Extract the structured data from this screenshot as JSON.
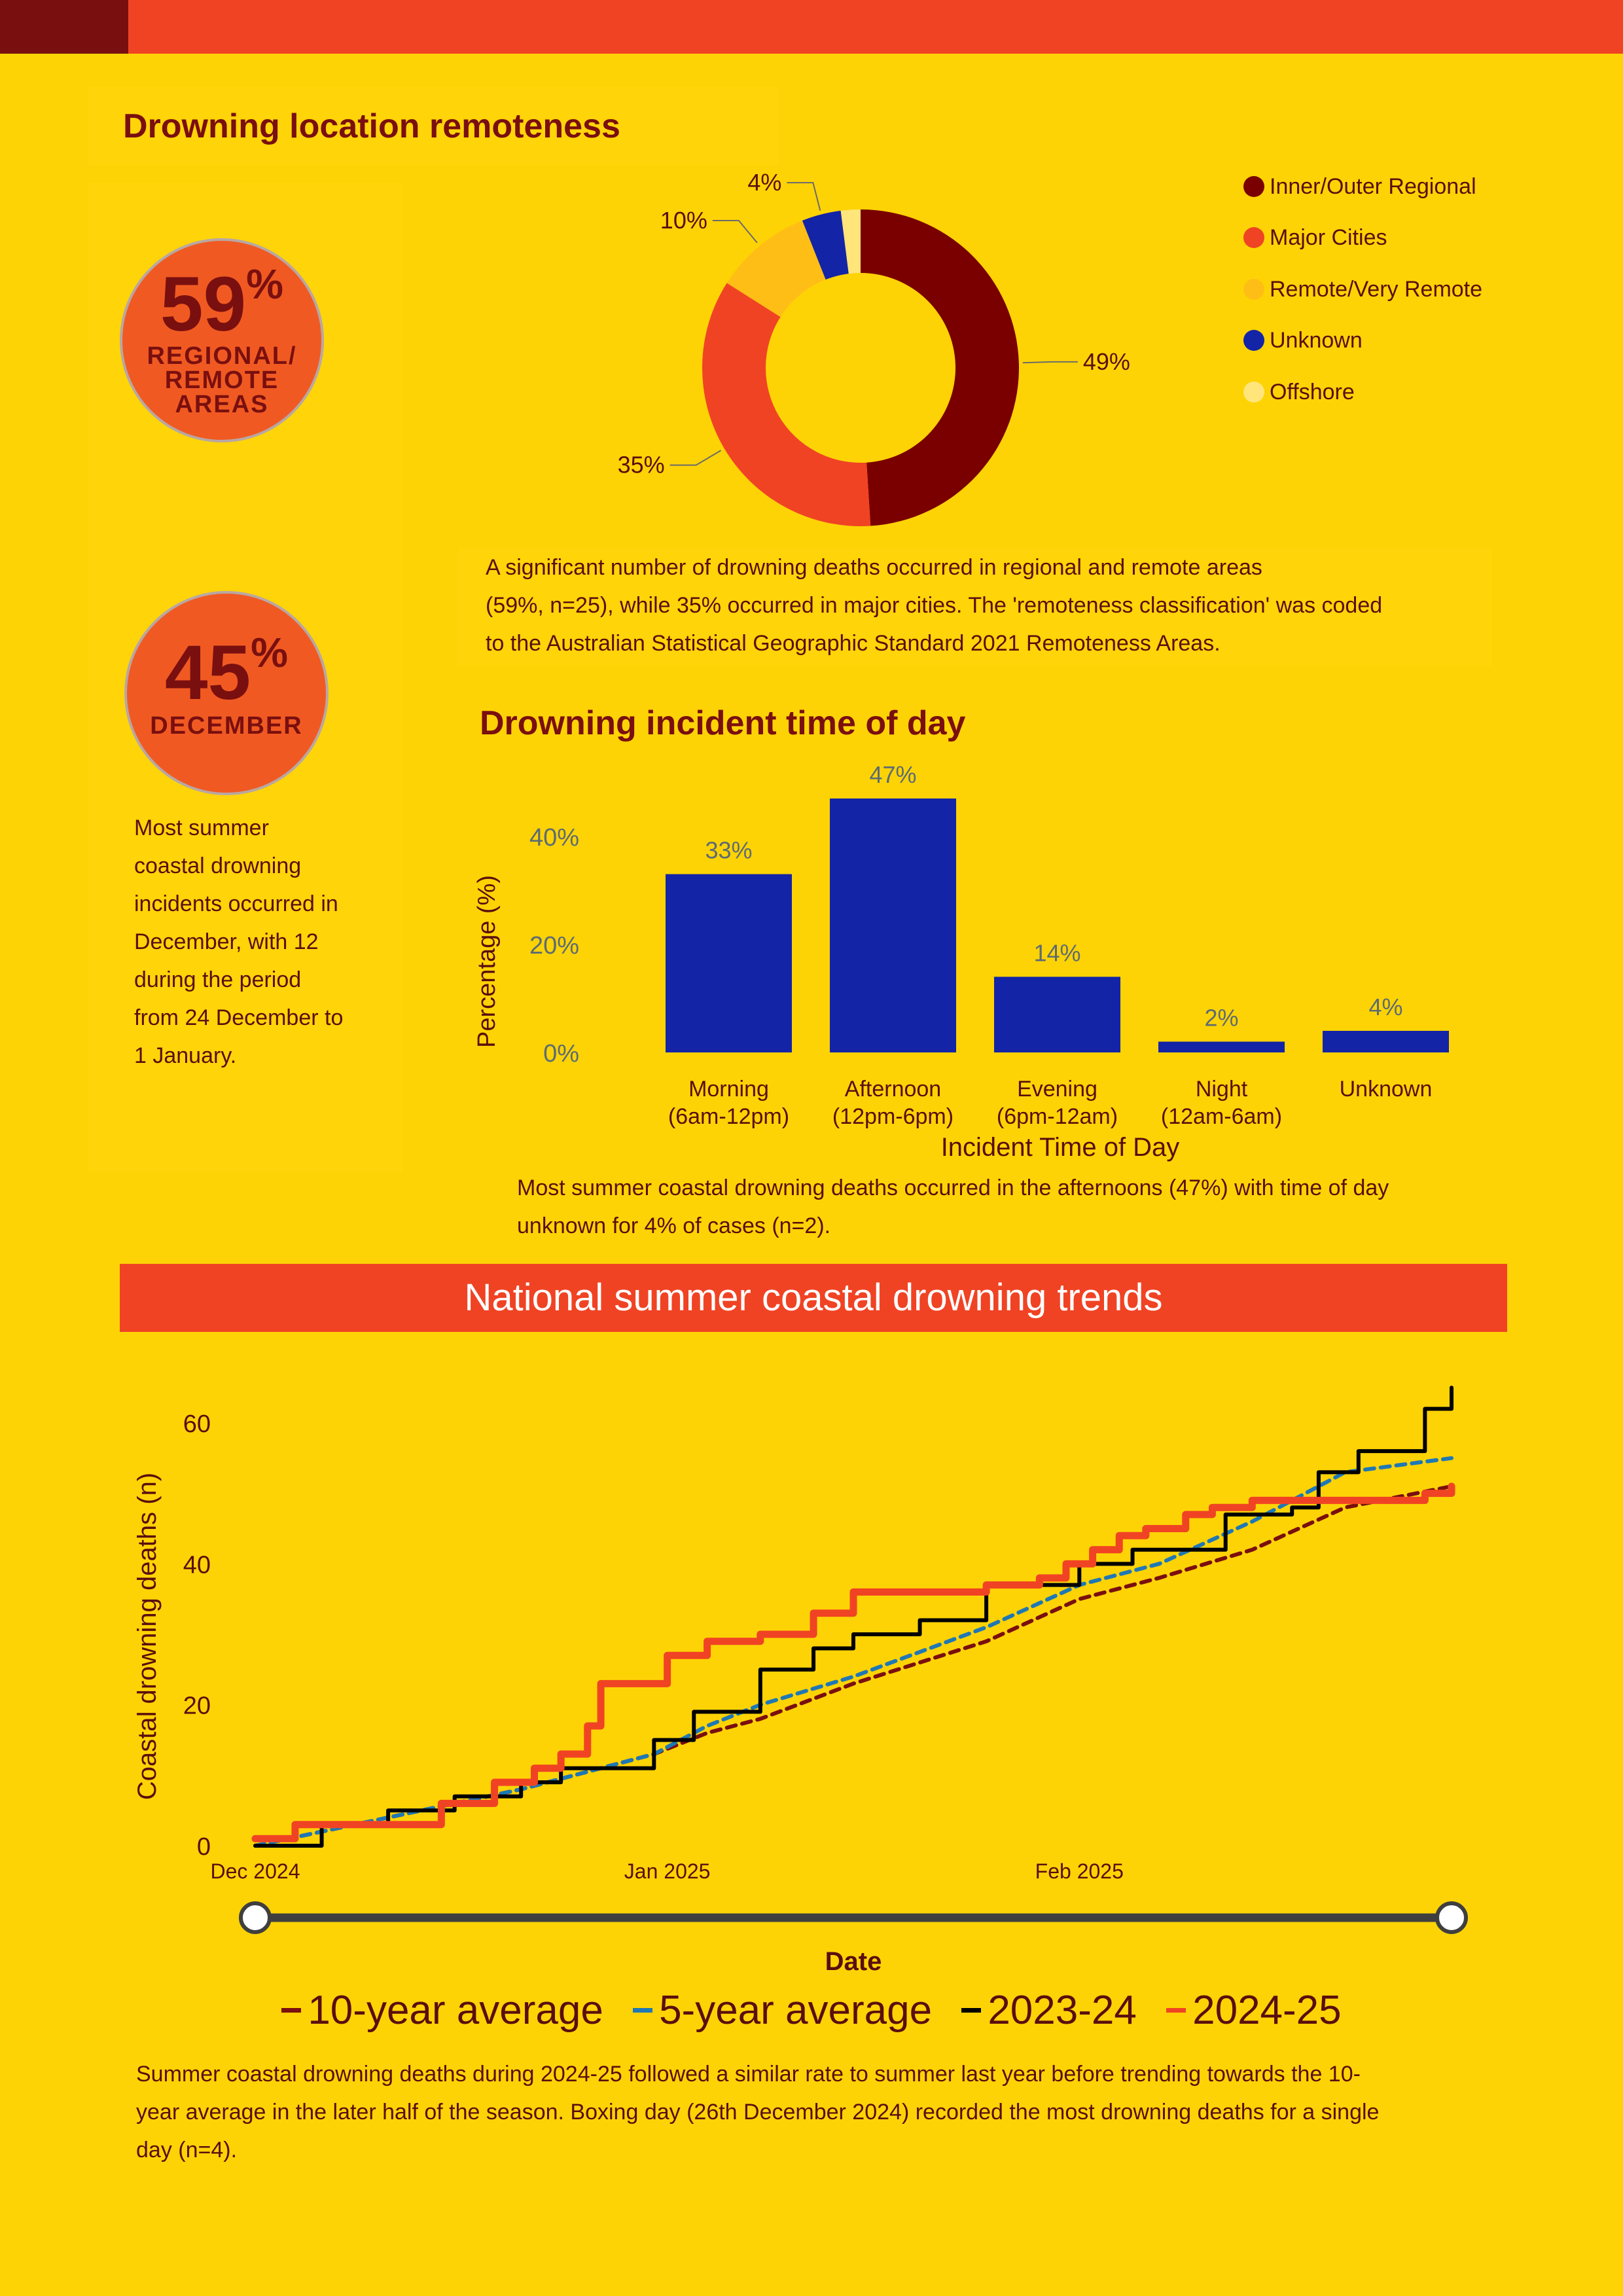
{
  "remoteness": {
    "title": "Drowning location remoteness",
    "stat_regional": {
      "value": "59",
      "symbol": "%",
      "label_lines": [
        "REGIONAL/",
        "REMOTE",
        "AREAS"
      ]
    },
    "stat_december": {
      "value": "45",
      "symbol": "%",
      "label": "DECEMBER"
    },
    "december_text": [
      "Most summer",
      "coastal drowning",
      "incidents occurred in",
      "December, with 12",
      "during the period",
      "from 24 December to",
      "1 January."
    ],
    "description_lines": [
      "A significant number of drowning deaths occurred in regional and remote areas",
      "(59%, n=25), while 35% occurred in major cities. The 'remoteness classification' was coded",
      "to the Australian Statistical Geographic Standard 2021 Remoteness Areas."
    ]
  },
  "time_of_day": {
    "title": "Drowning incident time of day",
    "caption_lines": [
      "Most summer coastal drowning deaths occurred in the afternoons (47%) with time of day",
      "unknown for 4% of cases (n=2)."
    ]
  },
  "trends": {
    "banner": "National summer coastal drowning trends",
    "caption_lines": [
      "Summer coastal drowning deaths during 2024-25 followed a similar rate to summer last year before trending towards the 10-",
      "year average in the later half of the season. Boxing day (26th December 2024) recorded the most drowning deaths for a single",
      "day (n=4)."
    ]
  },
  "colors": {
    "background": "#FED305",
    "accent_red": "#F04324",
    "dark_red": "#7A0F0F",
    "bar_blue": "#1324A6"
  },
  "chart_data": [
    {
      "type": "pie",
      "donut": true,
      "categories": [
        "Inner/Outer Regional",
        "Major Cities",
        "Remote/Very Remote",
        "Unknown",
        "Offshore"
      ],
      "values": [
        49,
        35,
        10,
        4,
        2
      ],
      "data_labels": [
        "49%",
        "35%",
        "10%",
        "4%",
        ""
      ],
      "colors": [
        "#7A0000",
        "#F04324",
        "#FFBE16",
        "#1324A6",
        "#FFE57A"
      ],
      "legend_position": "right"
    },
    {
      "type": "bar",
      "categories": [
        [
          "Morning",
          "(6am-12pm)"
        ],
        [
          "Afternoon",
          "(12pm-6pm)"
        ],
        [
          "Evening",
          "(6pm-12am)"
        ],
        [
          "Night",
          "(12am-6am)"
        ],
        [
          "Unknown"
        ]
      ],
      "values": [
        33,
        47,
        14,
        2,
        4
      ],
      "data_labels": [
        "33%",
        "47%",
        "14%",
        "2%",
        "4%"
      ],
      "xlabel": "Incident Time of Day",
      "ylabel": "Percentage (%)",
      "ylim": [
        0,
        47
      ],
      "yticks": [
        "0%",
        "20%",
        "40%"
      ],
      "ytick_values": [
        0,
        20,
        40
      ],
      "color": "#1324A6"
    },
    {
      "type": "line",
      "xlabel": "Date",
      "ylabel": "Coastal drowning deaths (n)",
      "xticks": [
        "Dec 2024",
        "Jan 2025",
        "Feb 2025"
      ],
      "ylim": [
        0,
        65
      ],
      "yticks": [
        0,
        20,
        40,
        60
      ],
      "x_note": "days since 1 Dec 2024",
      "series": [
        {
          "name": "10-year average",
          "color": "#7A0F0F",
          "style": "dashed",
          "x": [
            0,
            10,
            20,
            30,
            34,
            38,
            45,
            55,
            62,
            68,
            75,
            82,
            90
          ],
          "values": [
            0,
            4,
            8,
            13,
            16,
            18,
            23,
            29,
            35,
            38,
            42,
            48,
            51
          ]
        },
        {
          "name": "5-year average",
          "color": "#1F78B4",
          "style": "dashed",
          "x": [
            0,
            10,
            20,
            30,
            34,
            38,
            45,
            55,
            62,
            68,
            75,
            82,
            90
          ],
          "values": [
            0,
            4,
            8,
            13,
            17,
            20,
            24,
            31,
            37,
            40,
            46,
            53,
            55
          ]
        },
        {
          "name": "2023-24",
          "color": "#000000",
          "style": "solid",
          "x": [
            0,
            5,
            10,
            15,
            20,
            23,
            26,
            30,
            33,
            38,
            42,
            45,
            50,
            55,
            59,
            62,
            66,
            70,
            73,
            75,
            78,
            80,
            83,
            86,
            88,
            89,
            90
          ],
          "values": [
            0,
            3,
            5,
            7,
            9,
            11,
            11,
            15,
            19,
            25,
            28,
            30,
            32,
            37,
            37,
            40,
            42,
            42,
            47,
            47,
            48,
            53,
            56,
            56,
            62,
            62,
            65
          ]
        },
        {
          "name": "2024-25",
          "color": "#F04324",
          "style": "solid",
          "x": [
            0,
            3,
            5,
            10,
            12,
            14,
            18,
            21,
            23,
            25,
            26,
            29,
            31,
            34,
            36,
            38,
            40,
            42,
            45,
            50,
            52,
            55,
            59,
            61,
            63,
            65,
            67,
            70,
            72,
            75,
            78,
            80,
            85,
            88,
            90
          ],
          "values": [
            1,
            3,
            3,
            3,
            3,
            6,
            9,
            11,
            13,
            17,
            23,
            23,
            27,
            29,
            29,
            30,
            30,
            33,
            36,
            36,
            36,
            37,
            38,
            40,
            42,
            44,
            45,
            47,
            48,
            49,
            49,
            49,
            49,
            50,
            51
          ]
        }
      ]
    }
  ]
}
